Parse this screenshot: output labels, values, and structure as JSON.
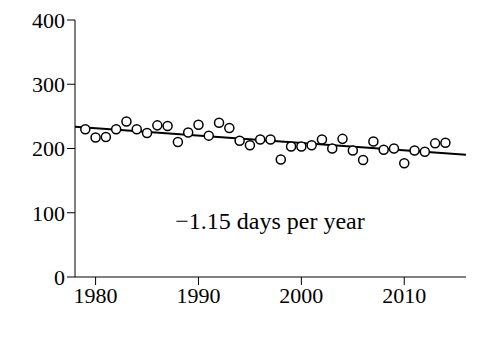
{
  "chart_data": {
    "type": "scatter",
    "annotation": "−1.15 days per year",
    "x": [
      1979,
      1980,
      1981,
      1982,
      1983,
      1984,
      1985,
      1986,
      1987,
      1988,
      1989,
      1990,
      1991,
      1992,
      1993,
      1994,
      1995,
      1996,
      1997,
      1998,
      1999,
      2000,
      2001,
      2002,
      2003,
      2004,
      2005,
      2006,
      2007,
      2008,
      2009,
      2010,
      2011,
      2012,
      2013,
      2014
    ],
    "values": [
      230,
      217,
      218,
      230,
      242,
      230,
      224,
      236,
      235,
      210,
      225,
      237,
      220,
      240,
      232,
      212,
      205,
      214,
      214,
      183,
      203,
      203,
      205,
      214,
      200,
      215,
      197,
      182,
      211,
      198,
      200,
      177,
      197,
      195,
      208,
      209
    ],
    "color": "#000000",
    "marker": "open_circle",
    "trend": {
      "x": [
        1978,
        2016
      ],
      "values": [
        234,
        190.3
      ]
    },
    "xlim": [
      1978,
      2016
    ],
    "xticks": [
      1980,
      1990,
      2000,
      2010
    ],
    "ylim": [
      0,
      400
    ],
    "yticks": [
      0,
      100,
      200,
      300,
      400
    ]
  }
}
